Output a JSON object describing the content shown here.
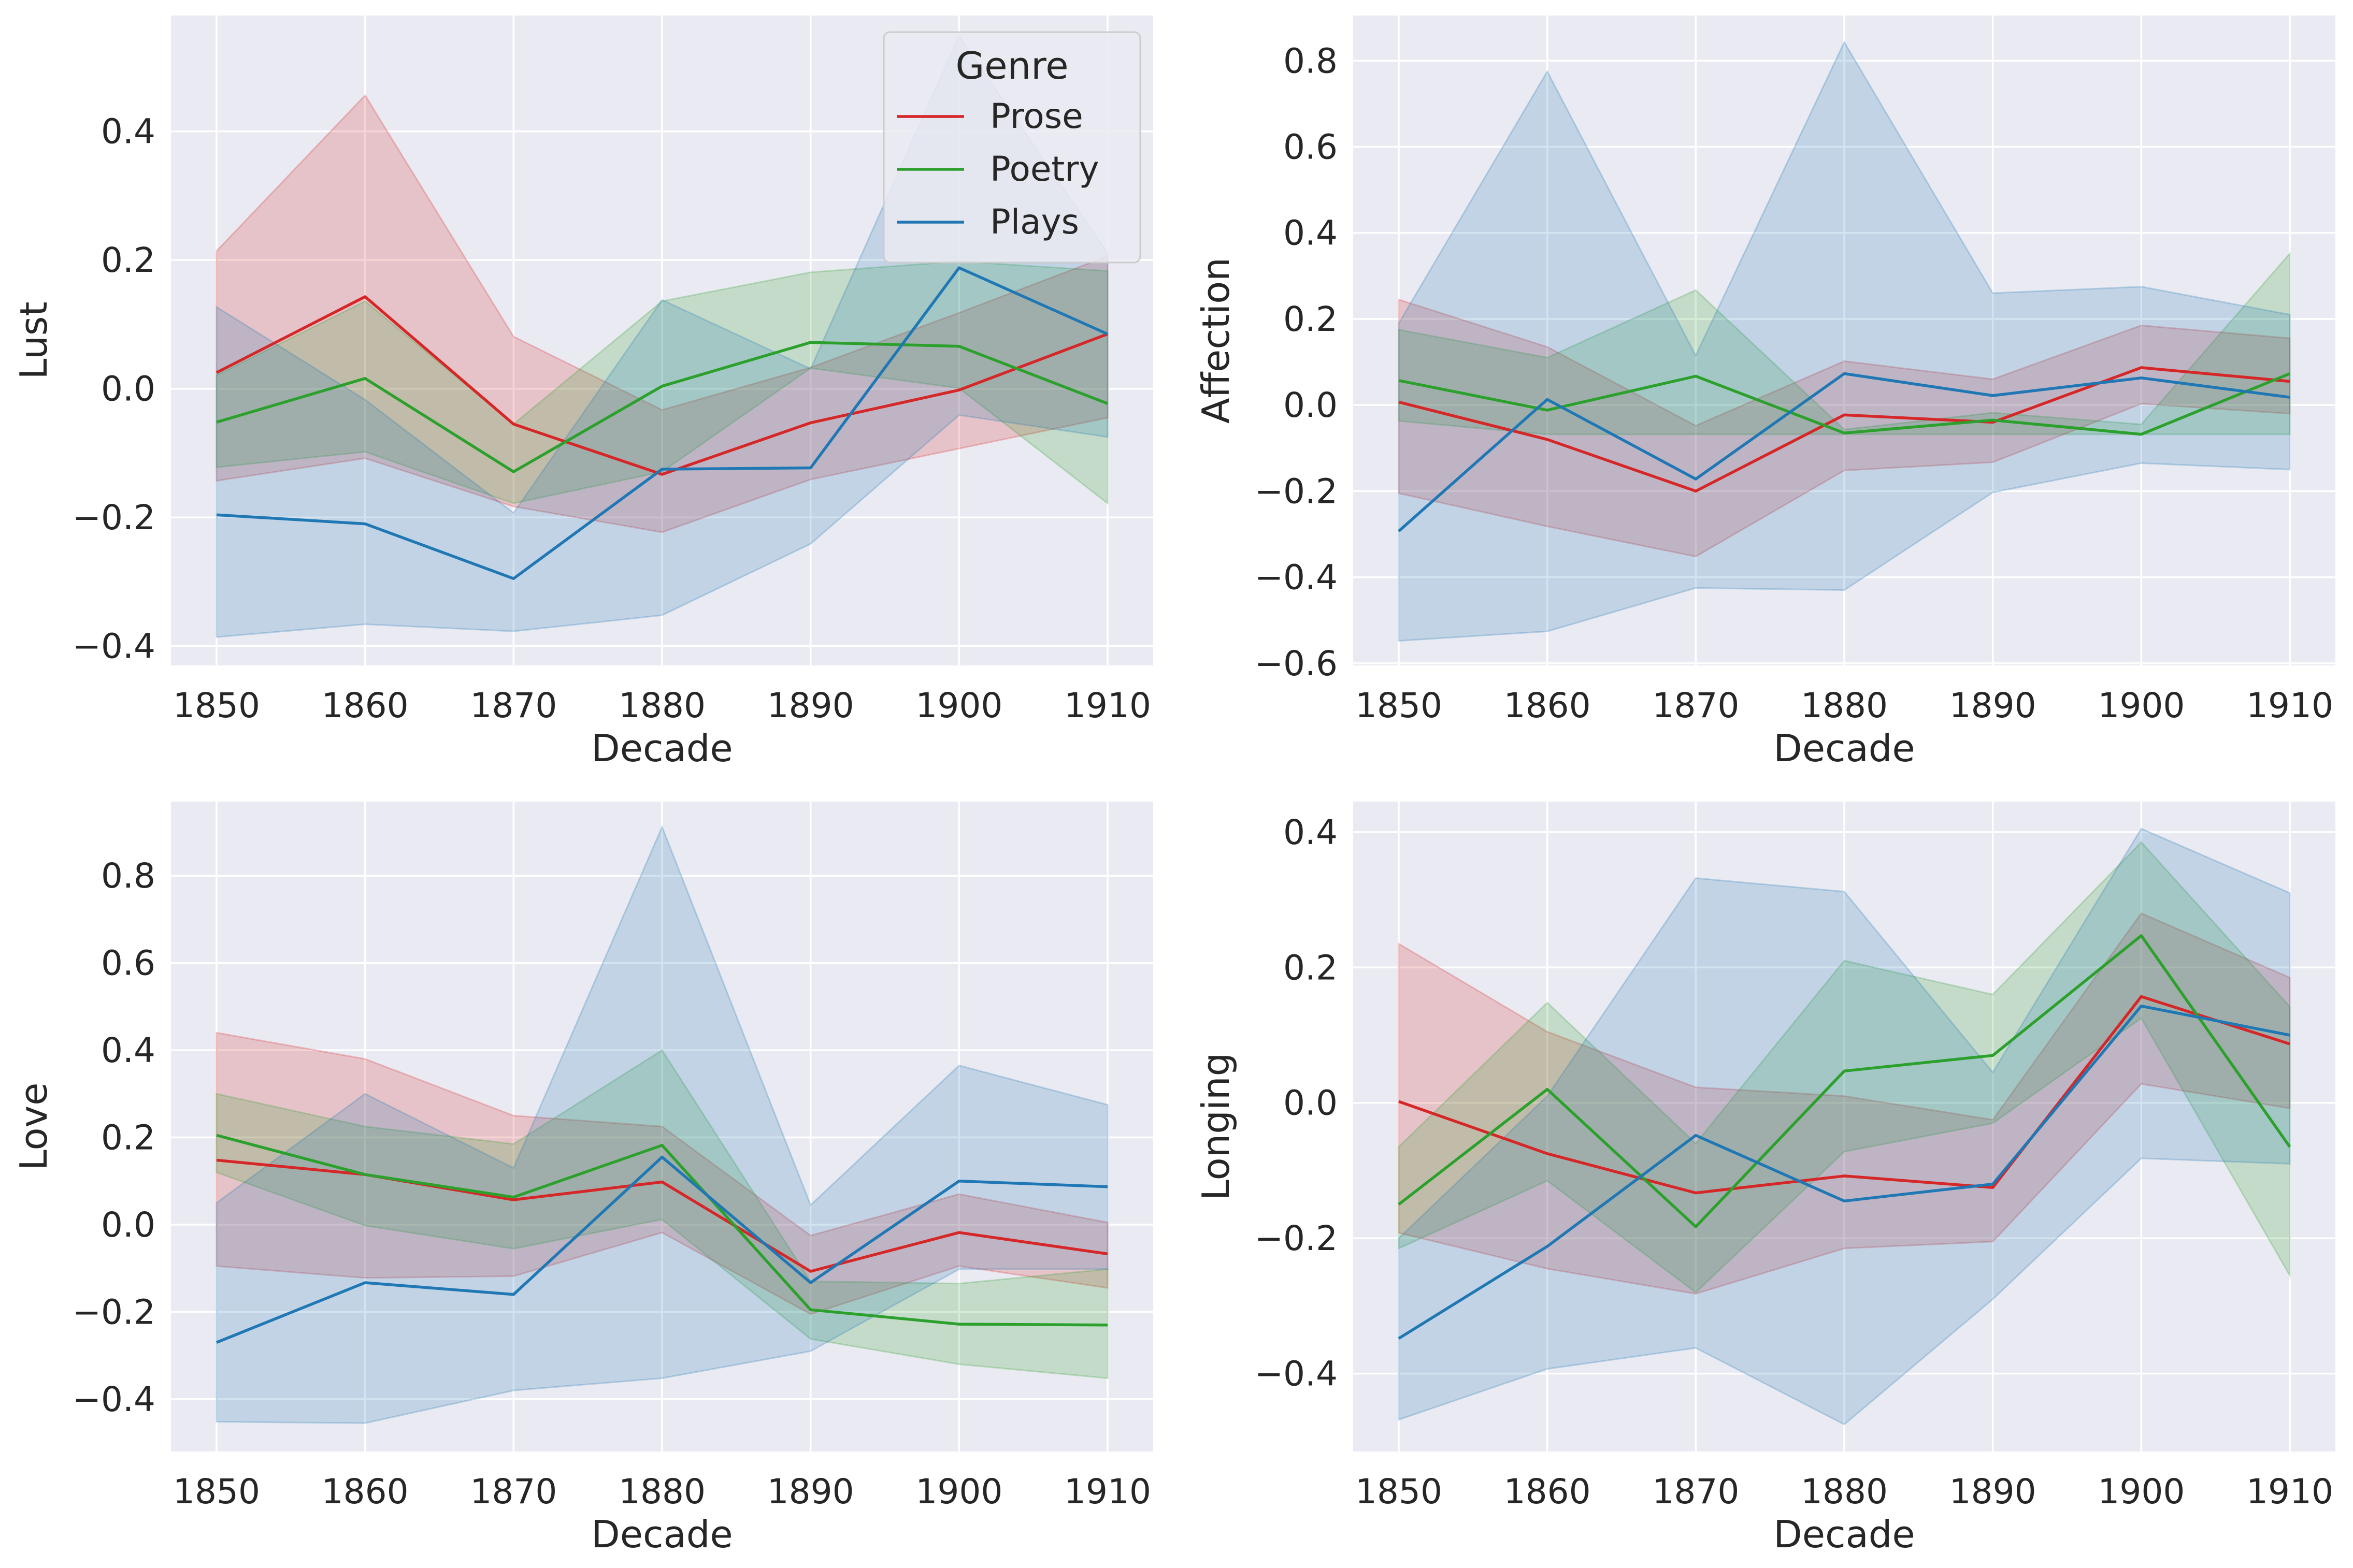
{
  "chart_data": [
    {
      "type": "line",
      "xlabel": "Decade",
      "ylabel": "Lust",
      "x": [
        1850,
        1860,
        1870,
        1880,
        1890,
        1900,
        1910
      ],
      "xticks": [
        "1850",
        "1860",
        "1870",
        "1880",
        "1890",
        "1900",
        "1910"
      ],
      "ylim": [
        -0.43,
        0.58
      ],
      "yticks": [
        "−0.4",
        "−0.2",
        "0.0",
        "0.2",
        "0.4"
      ],
      "ytick_values": [
        -0.4,
        -0.2,
        0.0,
        0.2,
        0.4
      ],
      "grid": true,
      "legend": {
        "title": "Genre",
        "placement": "top-right",
        "entries": [
          "Prose",
          "Poetry",
          "Plays"
        ]
      },
      "series": [
        {
          "name": "Prose",
          "color": "#d62728",
          "values": [
            0.025,
            0.143,
            -0.055,
            -0.133,
            -0.053,
            -0.002,
            0.085
          ],
          "lower": [
            -0.143,
            -0.108,
            -0.183,
            -0.223,
            -0.141,
            -0.093,
            -0.045
          ],
          "upper": [
            0.214,
            0.456,
            0.081,
            -0.033,
            0.033,
            0.118,
            0.206
          ]
        },
        {
          "name": "Poetry",
          "color": "#2ca02c",
          "values": [
            -0.052,
            0.016,
            -0.129,
            0.004,
            0.072,
            0.066,
            -0.023
          ],
          "lower": [
            -0.122,
            -0.098,
            -0.178,
            -0.129,
            0.032,
            0.001,
            -0.178
          ],
          "upper": [
            0.021,
            0.136,
            -0.055,
            0.136,
            0.181,
            0.198,
            0.183
          ]
        },
        {
          "name": "Plays",
          "color": "#1f77b4",
          "values": [
            -0.196,
            -0.21,
            -0.295,
            -0.125,
            -0.123,
            0.188,
            0.085
          ],
          "lower": [
            -0.386,
            -0.366,
            -0.377,
            -0.352,
            -0.241,
            -0.041,
            -0.075
          ],
          "upper": [
            0.127,
            -0.017,
            -0.193,
            0.138,
            0.031,
            0.548,
            0.211
          ]
        }
      ]
    },
    {
      "type": "line",
      "xlabel": "Decade",
      "ylabel": "Affection",
      "x": [
        1850,
        1860,
        1870,
        1880,
        1890,
        1900,
        1910
      ],
      "xticks": [
        "1850",
        "1860",
        "1870",
        "1880",
        "1890",
        "1900",
        "1910"
      ],
      "ylim": [
        -0.605,
        0.905
      ],
      "yticks": [
        "−0.6",
        "−0.4",
        "−0.2",
        "0.0",
        "0.2",
        "0.4",
        "0.6",
        "0.8"
      ],
      "ytick_values": [
        -0.6,
        -0.4,
        -0.2,
        0.0,
        0.2,
        0.4,
        0.6,
        0.8
      ],
      "grid": true,
      "series": [
        {
          "name": "Prose",
          "color": "#d62728",
          "values": [
            0.007,
            -0.08,
            -0.2,
            -0.023,
            -0.04,
            0.087,
            0.055
          ],
          "lower": [
            -0.205,
            -0.282,
            -0.352,
            -0.152,
            -0.133,
            0.003,
            -0.02
          ],
          "upper": [
            0.245,
            0.135,
            -0.048,
            0.102,
            0.06,
            0.185,
            0.155
          ]
        },
        {
          "name": "Poetry",
          "color": "#2ca02c",
          "values": [
            0.057,
            -0.012,
            0.067,
            -0.065,
            -0.035,
            -0.068,
            0.073
          ],
          "lower": [
            -0.037,
            -0.068,
            -0.068,
            -0.068,
            -0.068,
            -0.068,
            -0.068
          ],
          "upper": [
            0.175,
            0.11,
            0.267,
            -0.057,
            -0.018,
            -0.045,
            0.352
          ]
        },
        {
          "name": "Plays",
          "color": "#1f77b4",
          "values": [
            -0.293,
            0.013,
            -0.172,
            0.073,
            0.022,
            0.063,
            0.018
          ],
          "lower": [
            -0.548,
            -0.526,
            -0.425,
            -0.43,
            -0.203,
            -0.135,
            -0.15
          ],
          "upper": [
            0.19,
            0.775,
            0.115,
            0.843,
            0.26,
            0.275,
            0.21
          ]
        }
      ]
    },
    {
      "type": "line",
      "xlabel": "Decade",
      "ylabel": "Love",
      "x": [
        1850,
        1860,
        1870,
        1880,
        1890,
        1900,
        1910
      ],
      "xticks": [
        "1850",
        "1860",
        "1870",
        "1880",
        "1890",
        "1900",
        "1910"
      ],
      "ylim": [
        -0.52,
        0.97
      ],
      "yticks": [
        "−0.4",
        "−0.2",
        "0.0",
        "0.2",
        "0.4",
        "0.6",
        "0.8"
      ],
      "ytick_values": [
        -0.4,
        -0.2,
        0.0,
        0.2,
        0.4,
        0.6,
        0.8
      ],
      "grid": true,
      "series": [
        {
          "name": "Prose",
          "color": "#d62728",
          "values": [
            0.148,
            0.115,
            0.057,
            0.098,
            -0.107,
            -0.018,
            -0.067
          ],
          "lower": [
            -0.095,
            -0.122,
            -0.118,
            -0.018,
            -0.205,
            -0.095,
            -0.145
          ],
          "upper": [
            0.44,
            0.38,
            0.25,
            0.225,
            -0.025,
            0.07,
            0.005
          ]
        },
        {
          "name": "Poetry",
          "color": "#2ca02c",
          "values": [
            0.205,
            0.115,
            0.063,
            0.182,
            -0.195,
            -0.228,
            -0.23
          ],
          "lower": [
            0.12,
            -0.002,
            -0.055,
            0.012,
            -0.262,
            -0.32,
            -0.352
          ],
          "upper": [
            0.3,
            0.225,
            0.185,
            0.4,
            -0.13,
            -0.135,
            -0.102
          ]
        },
        {
          "name": "Plays",
          "color": "#1f77b4",
          "values": [
            -0.27,
            -0.133,
            -0.16,
            0.155,
            -0.133,
            0.1,
            0.087
          ],
          "lower": [
            -0.452,
            -0.455,
            -0.38,
            -0.352,
            -0.29,
            -0.102,
            -0.102
          ],
          "upper": [
            0.05,
            0.3,
            0.13,
            0.912,
            0.045,
            0.365,
            0.275
          ]
        }
      ]
    },
    {
      "type": "line",
      "xlabel": "Decade",
      "ylabel": "Longing",
      "x": [
        1850,
        1860,
        1870,
        1880,
        1890,
        1900,
        1910
      ],
      "xticks": [
        "1850",
        "1860",
        "1870",
        "1880",
        "1890",
        "1900",
        "1910"
      ],
      "ylim": [
        -0.515,
        0.445
      ],
      "yticks": [
        "−0.4",
        "−0.2",
        "0.0",
        "0.2",
        "0.4"
      ],
      "ytick_values": [
        -0.4,
        -0.2,
        0.0,
        0.2,
        0.4
      ],
      "grid": true,
      "series": [
        {
          "name": "Prose",
          "color": "#d62728",
          "values": [
            0.002,
            -0.075,
            -0.133,
            -0.108,
            -0.125,
            0.157,
            0.087
          ],
          "lower": [
            -0.192,
            -0.245,
            -0.282,
            -0.215,
            -0.205,
            0.028,
            -0.008
          ],
          "upper": [
            0.235,
            0.105,
            0.023,
            0.01,
            -0.025,
            0.28,
            0.185
          ]
        },
        {
          "name": "Poetry",
          "color": "#2ca02c",
          "values": [
            -0.15,
            0.02,
            -0.183,
            0.047,
            0.07,
            0.247,
            -0.065
          ],
          "lower": [
            -0.215,
            -0.115,
            -0.28,
            -0.072,
            -0.03,
            0.125,
            -0.255
          ],
          "upper": [
            -0.065,
            0.148,
            -0.06,
            0.21,
            0.16,
            0.385,
            0.142
          ]
        },
        {
          "name": "Plays",
          "color": "#1f77b4",
          "values": [
            -0.348,
            -0.212,
            -0.048,
            -0.145,
            -0.12,
            0.143,
            0.1
          ],
          "lower": [
            -0.468,
            -0.393,
            -0.362,
            -0.475,
            -0.29,
            -0.082,
            -0.09
          ],
          "upper": [
            -0.2,
            0.01,
            0.332,
            0.312,
            0.045,
            0.405,
            0.31
          ]
        }
      ]
    }
  ]
}
